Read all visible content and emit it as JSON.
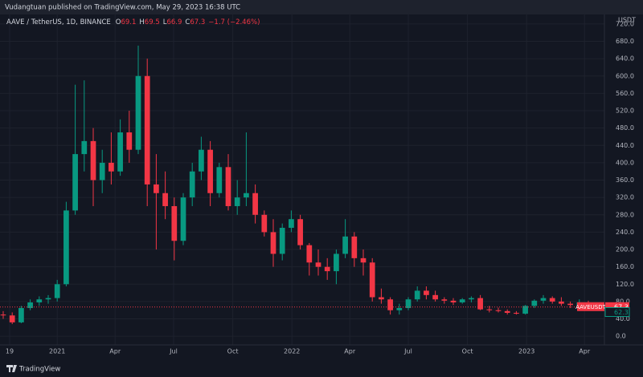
{
  "header": {
    "published": "Vudangtuan published on TradingView.com, May 29, 2023 16:38 UTC"
  },
  "footer": {
    "brand": "TradingView"
  },
  "chart_data": {
    "type": "candlestick",
    "symbol": "AAVE / TetherUS, 1D, BINANCE",
    "ohlc": [
      {
        "label": "O",
        "value": 69.1
      },
      {
        "label": "H",
        "value": 69.5
      },
      {
        "label": "L",
        "value": 66.9
      },
      {
        "label": "C",
        "value": 67.3
      }
    ],
    "change": "−1.7 (−2.46%)",
    "y_unit": "USDT",
    "last_price_name": "AAVEUSDT",
    "last_price": 67.3,
    "other_price": 62.3,
    "up_color": "#089981",
    "down_color": "#f23645",
    "x": [
      -10,
      4,
      18,
      32,
      46,
      60,
      74,
      88,
      102,
      116,
      130,
      144,
      158,
      172,
      186,
      200,
      214,
      228,
      242,
      256,
      270,
      284,
      298,
      312,
      326,
      340,
      354,
      368,
      382,
      396,
      410,
      424,
      438,
      452,
      466,
      480,
      494,
      508,
      522,
      536,
      550,
      564,
      578,
      592,
      606,
      620,
      634,
      648,
      662,
      676,
      690,
      704,
      718,
      732,
      746,
      760,
      774,
      788,
      802,
      816,
      830,
      844,
      858,
      872,
      886,
      900,
      914
    ],
    "open": [
      50,
      48,
      32,
      65,
      78,
      85,
      88,
      120,
      290,
      420,
      450,
      360,
      400,
      380,
      470,
      430,
      600,
      350,
      330,
      300,
      220,
      320,
      380,
      430,
      330,
      390,
      300,
      320,
      330,
      280,
      240,
      190,
      250,
      270,
      210,
      170,
      160,
      150,
      190,
      230,
      180,
      170,
      90,
      85,
      60,
      65,
      85,
      105,
      95,
      85,
      82,
      78,
      85,
      88,
      62,
      60,
      58,
      54,
      52,
      70,
      82,
      88,
      80,
      75,
      72,
      78,
      72
    ],
    "high": [
      58,
      55,
      70,
      85,
      92,
      95,
      130,
      310,
      580,
      590,
      480,
      430,
      470,
      500,
      520,
      670,
      640,
      420,
      380,
      320,
      330,
      400,
      460,
      450,
      400,
      420,
      360,
      470,
      350,
      290,
      270,
      260,
      290,
      280,
      215,
      200,
      180,
      200,
      270,
      240,
      200,
      180,
      110,
      90,
      75,
      90,
      115,
      115,
      105,
      90,
      88,
      88,
      92,
      95,
      70,
      66,
      62,
      58,
      72,
      85,
      95,
      92,
      90,
      80,
      85,
      82,
      76
    ],
    "low": [
      40,
      28,
      30,
      60,
      70,
      75,
      80,
      115,
      280,
      380,
      300,
      330,
      350,
      370,
      400,
      420,
      300,
      200,
      270,
      175,
      210,
      300,
      360,
      300,
      320,
      290,
      280,
      300,
      260,
      230,
      160,
      175,
      240,
      200,
      140,
      140,
      130,
      120,
      180,
      160,
      140,
      80,
      75,
      50,
      50,
      60,
      80,
      85,
      80,
      75,
      72,
      75,
      78,
      60,
      55,
      55,
      50,
      50,
      50,
      65,
      75,
      75,
      70,
      65,
      68,
      70,
      62
    ],
    "close": [
      48,
      32,
      65,
      78,
      85,
      88,
      120,
      290,
      420,
      450,
      360,
      400,
      380,
      470,
      430,
      600,
      350,
      330,
      300,
      220,
      320,
      380,
      430,
      330,
      390,
      300,
      320,
      330,
      280,
      240,
      190,
      250,
      270,
      210,
      170,
      160,
      150,
      190,
      230,
      180,
      170,
      90,
      85,
      60,
      65,
      85,
      105,
      95,
      85,
      82,
      78,
      85,
      88,
      62,
      60,
      58,
      54,
      52,
      70,
      82,
      88,
      80,
      75,
      72,
      78,
      72,
      67.3
    ],
    "xlim": [
      -15,
      925
    ],
    "xticks": [
      {
        "value": 0,
        "label": "19"
      },
      {
        "value": 74,
        "label": "2021"
      },
      {
        "value": 164,
        "label": "Apr"
      },
      {
        "value": 255,
        "label": "Jul"
      },
      {
        "value": 347,
        "label": "Oct"
      },
      {
        "value": 439,
        "label": "2022"
      },
      {
        "value": 529,
        "label": "Apr"
      },
      {
        "value": 620,
        "label": "Jul"
      },
      {
        "value": 712,
        "label": "Oct"
      },
      {
        "value": 804,
        "label": "2023"
      },
      {
        "value": 894,
        "label": "Apr"
      }
    ],
    "ylim": [
      -20,
      742
    ],
    "yticks": [
      {
        "value": 0,
        "label": "0.0"
      },
      {
        "value": 40,
        "label": "40.0"
      },
      {
        "value": 80,
        "label": "80.0"
      },
      {
        "value": 120,
        "label": "120.0"
      },
      {
        "value": 160,
        "label": "160.0"
      },
      {
        "value": 200,
        "label": "200.0"
      },
      {
        "value": 240,
        "label": "240.0"
      },
      {
        "value": 280,
        "label": "280.0"
      },
      {
        "value": 320,
        "label": "320.0"
      },
      {
        "value": 360,
        "label": "360.0"
      },
      {
        "value": 400,
        "label": "400.0"
      },
      {
        "value": 440,
        "label": "440.0"
      },
      {
        "value": 480,
        "label": "480.0"
      },
      {
        "value": 520,
        "label": "520.0"
      },
      {
        "value": 560,
        "label": "560.0"
      },
      {
        "value": 600,
        "label": "600.0"
      },
      {
        "value": 640,
        "label": "640.0"
      },
      {
        "value": 680,
        "label": "680.0"
      },
      {
        "value": 720,
        "label": "720.0"
      }
    ],
    "grid": true
  }
}
